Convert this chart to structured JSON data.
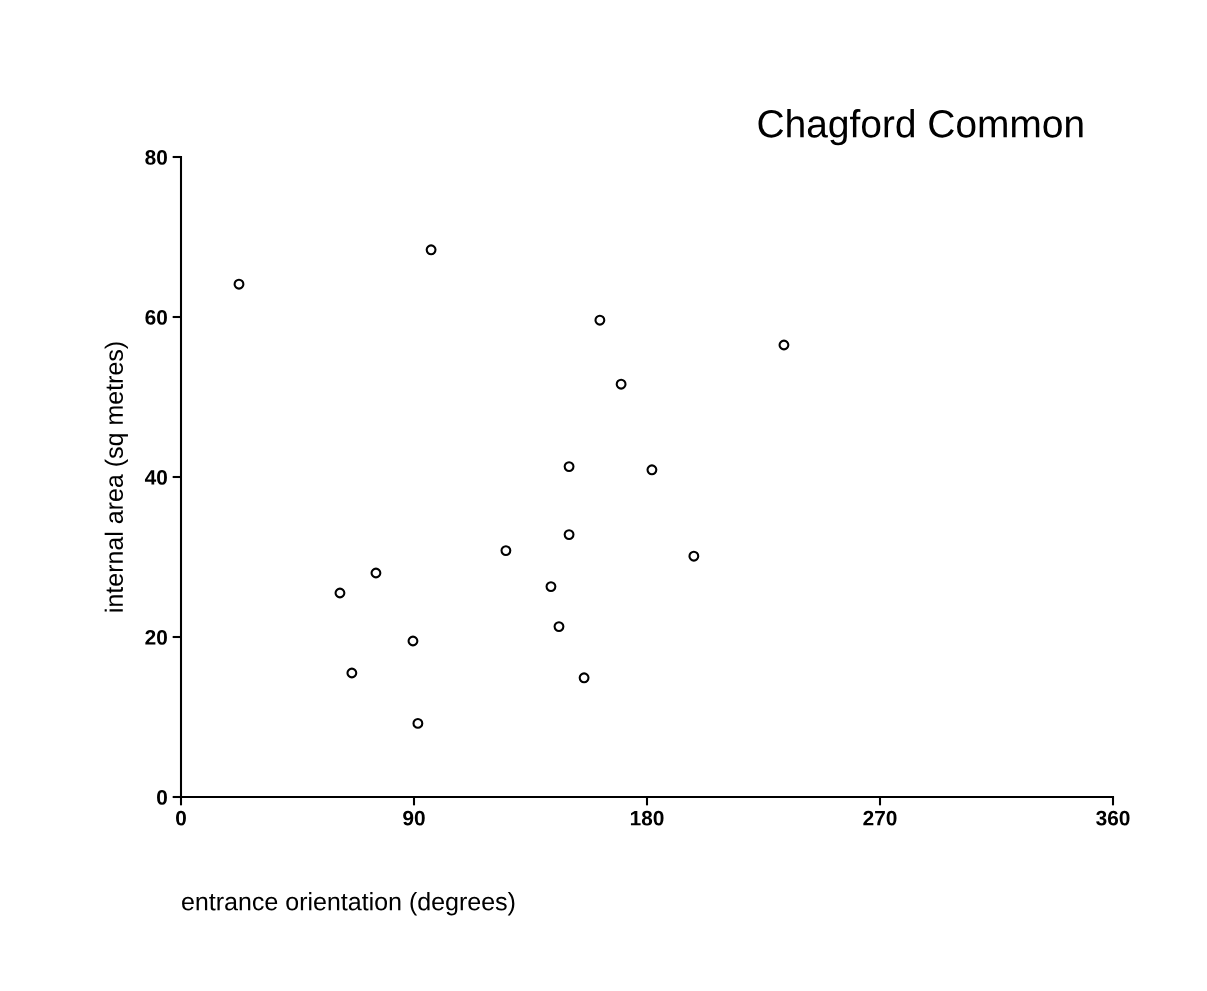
{
  "chart_data": {
    "type": "scatter",
    "title": "Chagford Common",
    "xlabel": "entrance orientation (degrees)",
    "ylabel": "internal area (sq metres)",
    "x": [
      22.4,
      96.6,
      161.8,
      232.9,
      170,
      149.9,
      181.9,
      125.5,
      149.9,
      198.1,
      142.9,
      61.4,
      75.3,
      89.6,
      66,
      146,
      155.7,
      91.5
    ],
    "values": [
      64.1,
      68.4,
      59.6,
      56.5,
      51.6,
      41.3,
      40.9,
      30.8,
      32.8,
      30.1,
      26.3,
      25.5,
      28,
      19.5,
      15.5,
      21.3,
      14.9,
      9.2
    ],
    "color": "#000000",
    "marker": "circle",
    "xlim": [
      0,
      360
    ],
    "xticks": [
      0,
      90,
      180,
      270,
      360
    ],
    "ylim": [
      0,
      80
    ],
    "yticks": [
      0,
      20,
      40,
      60,
      80
    ],
    "grid": false,
    "legend": false
  }
}
